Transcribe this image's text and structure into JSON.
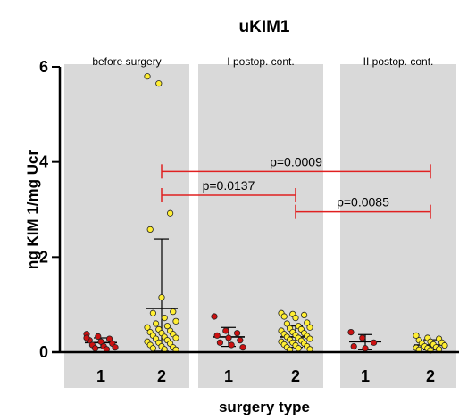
{
  "chart_data": {
    "type": "scatter",
    "title": "uKIM1",
    "xlabel": "surgery type",
    "ylabel": "ng KIM 1/mg Ucr",
    "ylim": [
      0,
      6
    ],
    "yticks": [
      "0",
      "2",
      "4",
      "6"
    ],
    "grid": false,
    "panels": [
      {
        "label": "before surgery",
        "groups": [
          {
            "category": "1",
            "color": "#cc1111",
            "mean": 0.2,
            "sd_low": 0.1,
            "sd_high": 0.3,
            "values": [
              0.38,
              0.33,
              0.28,
              0.25,
              0.22,
              0.18,
              0.15,
              0.12,
              0.1,
              0.08,
              0.06,
              0.3
            ]
          },
          {
            "category": "2",
            "color": "#ffee33",
            "mean": 0.92,
            "sd_low": 0.02,
            "sd_high": 2.38,
            "values": [
              5.8,
              5.65,
              2.92,
              2.58,
              1.15,
              0.85,
              0.82,
              0.72,
              0.65,
              0.6,
              0.55,
              0.52,
              0.48,
              0.45,
              0.42,
              0.4,
              0.38,
              0.35,
              0.32,
              0.3,
              0.28,
              0.25,
              0.22,
              0.2,
              0.18,
              0.15,
              0.12,
              0.1,
              0.08,
              0.06,
              0.05
            ]
          }
        ]
      },
      {
        "label": "I postop. cont.",
        "groups": [
          {
            "category": "1",
            "color": "#cc1111",
            "mean": 0.32,
            "sd_low": 0.12,
            "sd_high": 0.52,
            "values": [
              0.75,
              0.45,
              0.4,
              0.35,
              0.3,
              0.25,
              0.2,
              0.15,
              0.1
            ]
          },
          {
            "category": "2",
            "color": "#ffee33",
            "mean": 0.32,
            "sd_low": 0.1,
            "sd_high": 0.55,
            "values": [
              0.82,
              0.8,
              0.78,
              0.75,
              0.72,
              0.62,
              0.6,
              0.55,
              0.52,
              0.5,
              0.48,
              0.45,
              0.42,
              0.4,
              0.38,
              0.36,
              0.34,
              0.32,
              0.3,
              0.28,
              0.26,
              0.24,
              0.22,
              0.2,
              0.18,
              0.16,
              0.14,
              0.12,
              0.1,
              0.08,
              0.06,
              0.05
            ]
          }
        ]
      },
      {
        "label": "II postop. cont.",
        "groups": [
          {
            "category": "1",
            "color": "#cc1111",
            "mean": 0.22,
            "sd_low": 0.05,
            "sd_high": 0.37,
            "values": [
              0.42,
              0.3,
              0.2,
              0.12,
              0.08
            ]
          },
          {
            "category": "2",
            "color": "#ffee33",
            "mean": 0.15,
            "sd_low": 0.05,
            "sd_high": 0.26,
            "values": [
              0.35,
              0.3,
              0.28,
              0.25,
              0.22,
              0.2,
              0.18,
              0.16,
              0.14,
              0.12,
              0.1,
              0.09,
              0.08,
              0.06,
              0.05,
              0.04
            ]
          }
        ]
      }
    ],
    "comparisons": [
      {
        "label": "p=0.0009",
        "from_panel": 0,
        "to_panel": 2,
        "y": 3.8
      },
      {
        "label": "p=0.0137",
        "from_panel": 0,
        "to_panel": 1,
        "y": 3.3
      },
      {
        "label": "p=0.0085",
        "from_panel": 1,
        "to_panel": 2,
        "y": 2.95
      }
    ]
  }
}
